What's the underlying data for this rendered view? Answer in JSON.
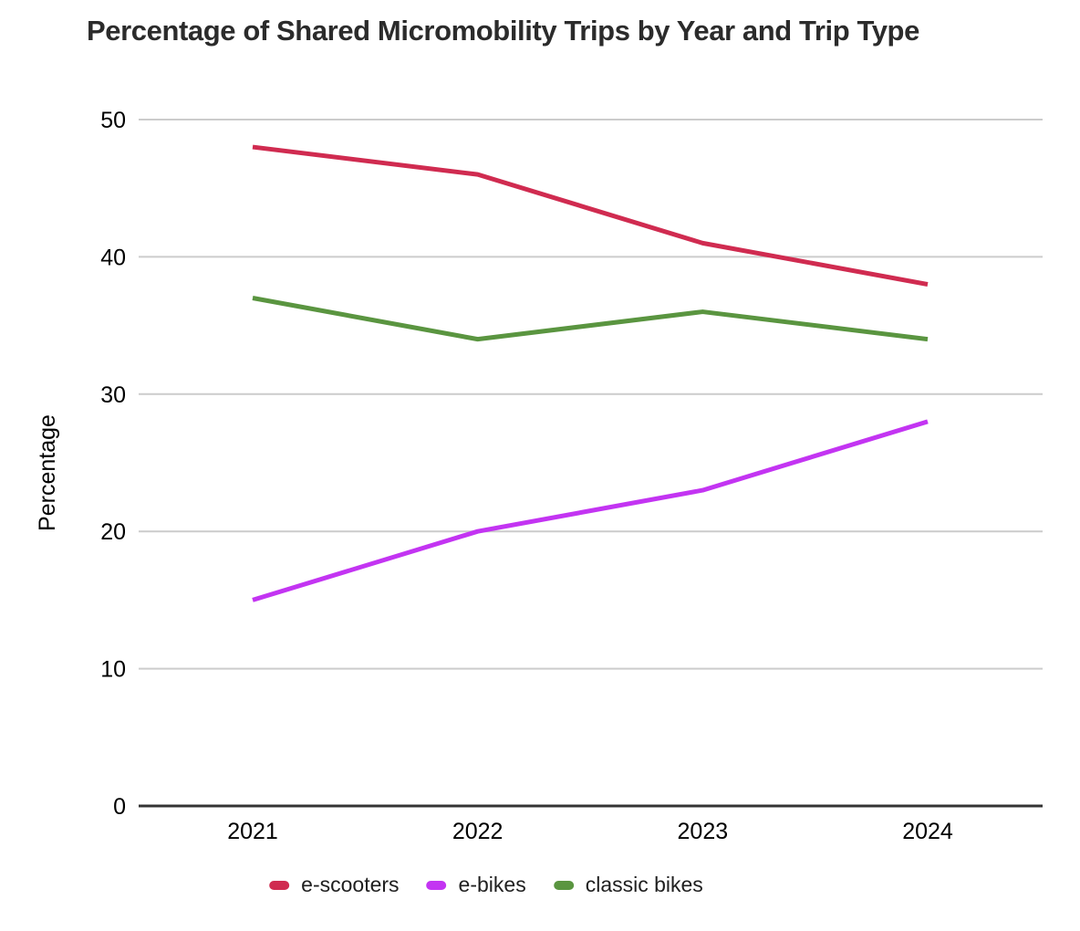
{
  "chart_data": {
    "type": "line",
    "title": "Percentage of Shared Micromobility Trips by Year and Trip Type",
    "categories": [
      "2021",
      "2022",
      "2023",
      "2024"
    ],
    "series": [
      {
        "name": "e-scooters",
        "color": "#d02b50",
        "values": [
          48,
          46,
          41,
          38
        ]
      },
      {
        "name": "e-bikes",
        "color": "#c334f2",
        "values": [
          15,
          20,
          23,
          28
        ]
      },
      {
        "name": "classic bikes",
        "color": "#5a9540",
        "values": [
          37,
          34,
          36,
          34
        ]
      }
    ],
    "xlabel": "",
    "ylabel": "Percentage",
    "ylim": [
      0,
      50
    ],
    "yticks": [
      0,
      10,
      20,
      30,
      40,
      50
    ],
    "grid": "horizontal",
    "legend_position": "bottom",
    "colors": {
      "gridline": "#cccccc",
      "axis_baseline": "#333333",
      "tick_text": "#000000",
      "title_text": "#2b2b2b",
      "background": "#ffffff"
    }
  }
}
